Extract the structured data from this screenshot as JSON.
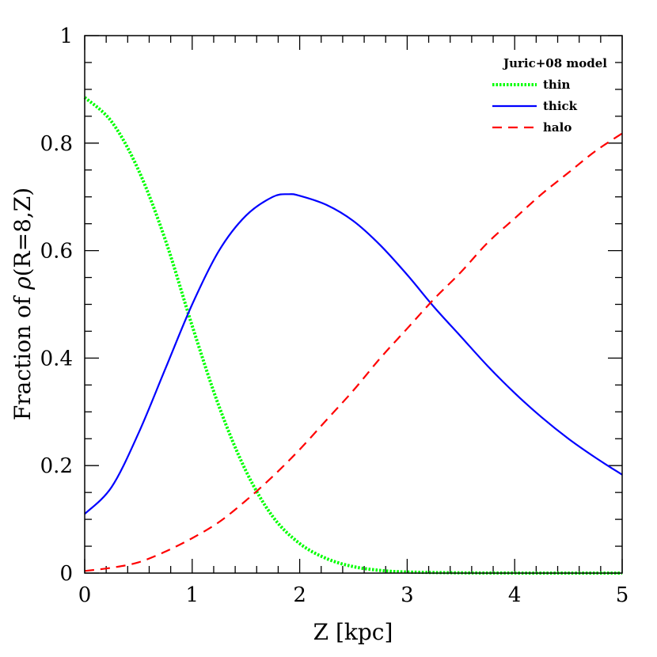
{
  "chart_data": {
    "type": "line",
    "title": "",
    "xlabel": "Z [kpc]",
    "ylabel_prefix": "Fraction of ",
    "ylabel_symbol": "ρ",
    "ylabel_suffix": "(R=8,Z)",
    "xlim": [
      0,
      5
    ],
    "ylim": [
      0,
      1
    ],
    "x_major_ticks": [
      0,
      1,
      2,
      3,
      4,
      5
    ],
    "x_tick_labels": [
      "0",
      "1",
      "2",
      "3",
      "4",
      "5"
    ],
    "y_major_ticks": [
      0,
      0.2,
      0.4,
      0.6,
      0.8,
      1
    ],
    "y_tick_labels": [
      "0",
      "0.2",
      "0.4",
      "0.6",
      "0.8",
      "1"
    ],
    "legend_title": "Juric+08 model",
    "legend_position": "top-right",
    "grid": false,
    "series": [
      {
        "name": "thin",
        "color": "#00ff00",
        "style": "dotted",
        "x": [
          0,
          0.25,
          0.5,
          0.75,
          1.0,
          1.25,
          1.5,
          1.75,
          2.0,
          2.25,
          2.5,
          2.75,
          3.0,
          3.5,
          4.0,
          4.5,
          5.0
        ],
        "y": [
          0.885,
          0.84,
          0.75,
          0.62,
          0.46,
          0.31,
          0.19,
          0.105,
          0.055,
          0.027,
          0.012,
          0.005,
          0.002,
          0.0005,
          0.0001,
          0.0,
          0.0
        ]
      },
      {
        "name": "thick",
        "color": "#0000ff",
        "style": "solid",
        "x": [
          0,
          0.25,
          0.5,
          0.75,
          1.0,
          1.25,
          1.5,
          1.75,
          1.9,
          2.0,
          2.25,
          2.5,
          2.75,
          3.0,
          3.25,
          3.5,
          3.75,
          4.0,
          4.25,
          4.5,
          4.75,
          5.0
        ],
        "y": [
          0.11,
          0.16,
          0.26,
          0.38,
          0.5,
          0.6,
          0.665,
          0.7,
          0.705,
          0.702,
          0.685,
          0.655,
          0.61,
          0.555,
          0.495,
          0.44,
          0.385,
          0.335,
          0.29,
          0.25,
          0.215,
          0.183
        ]
      },
      {
        "name": "halo",
        "color": "#ff0000",
        "style": "dashed",
        "x": [
          0,
          0.25,
          0.5,
          0.75,
          1.0,
          1.25,
          1.5,
          1.75,
          2.0,
          2.25,
          2.5,
          2.75,
          3.0,
          3.25,
          3.5,
          3.75,
          4.0,
          4.25,
          4.5,
          4.75,
          5.0
        ],
        "y": [
          0.004,
          0.01,
          0.02,
          0.04,
          0.065,
          0.095,
          0.135,
          0.18,
          0.23,
          0.285,
          0.34,
          0.4,
          0.455,
          0.51,
          0.56,
          0.615,
          0.66,
          0.705,
          0.745,
          0.785,
          0.818
        ]
      }
    ]
  }
}
